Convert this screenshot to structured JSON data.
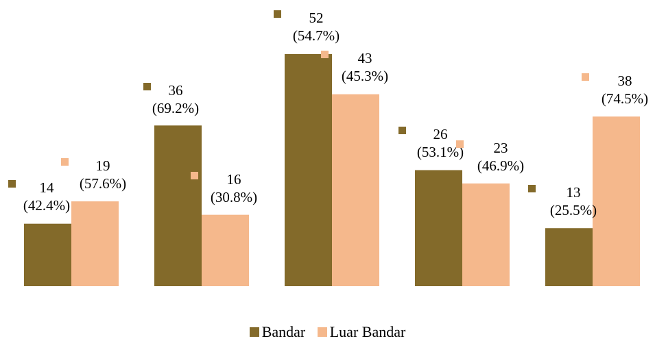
{
  "chart_data": {
    "type": "bar",
    "title": "",
    "xlabel": "",
    "ylabel": "",
    "categories": [
      "",
      "",
      "",
      "",
      ""
    ],
    "series": [
      {
        "name": "Bandar",
        "color": "#836A2A",
        "values": [
          14,
          36,
          52,
          26,
          13
        ],
        "labels": [
          "14\n(42.4%)",
          "36\n(69.2%)",
          "52\n(54.7%)",
          "26\n(53.1%)",
          "13\n(25.5%)"
        ]
      },
      {
        "name": "Luar Bandar",
        "color": "#F5B88C",
        "values": [
          19,
          16,
          43,
          23,
          38
        ],
        "labels": [
          "19\n(57.6%)",
          "16\n(30.8%)",
          "43\n(45.3%)",
          "23\n(46.9%)",
          "38\n(74.5%)"
        ]
      }
    ],
    "ylim": [
      0,
      60
    ],
    "grid": false,
    "legend_position": "bottom"
  }
}
